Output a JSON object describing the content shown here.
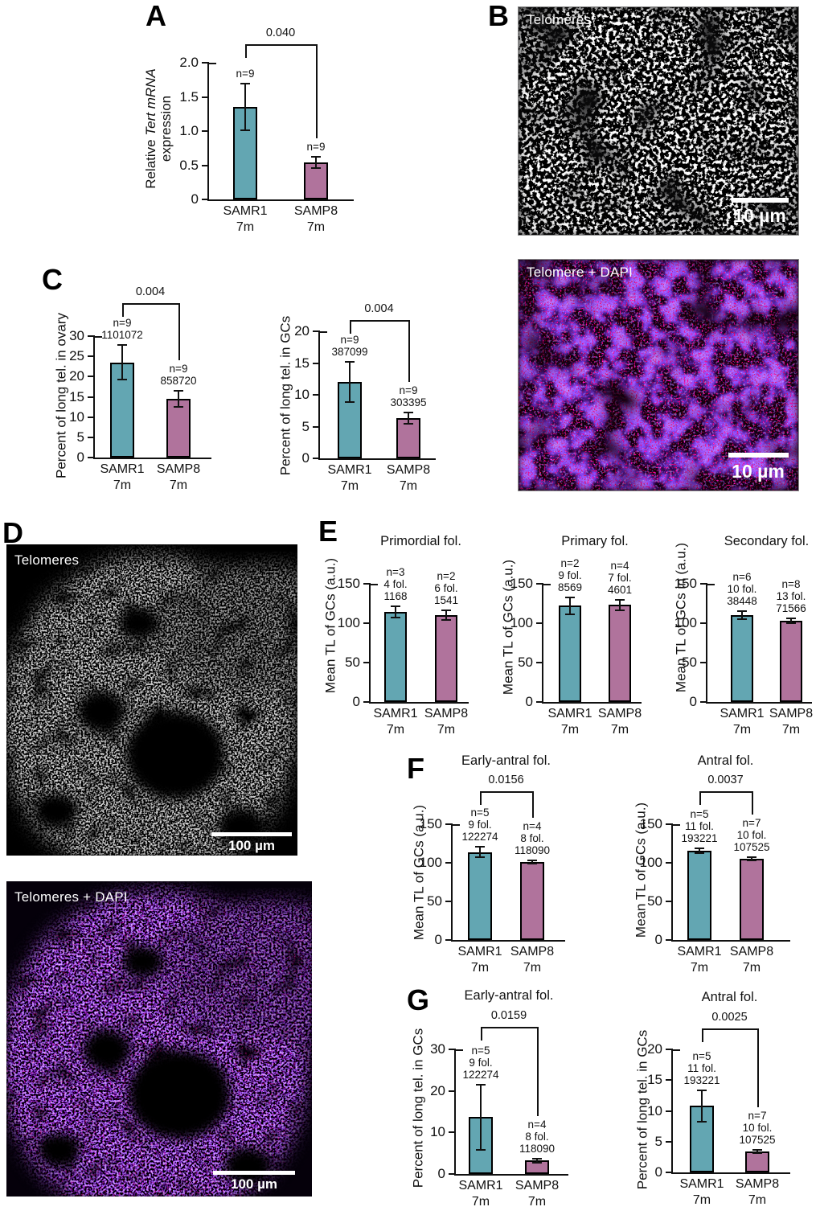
{
  "colors": {
    "teal": "#63a6b2",
    "mauve": "#b0739c",
    "axis": "#111111"
  },
  "panels": {
    "A": {
      "letter": "A"
    },
    "B": {
      "letter": "B",
      "images": [
        {
          "label": "Telomeres",
          "scale_text": "10 µm"
        },
        {
          "label": "Telomere + DAPI",
          "scale_text": "10 µm"
        }
      ]
    },
    "C": {
      "letter": "C"
    },
    "D": {
      "letter": "D",
      "images": [
        {
          "label": "Telomeres",
          "scale_text": "100 µm"
        },
        {
          "label": "Telomeres + DAPI",
          "scale_text": "100 µm"
        }
      ]
    },
    "E": {
      "letter": "E"
    },
    "F": {
      "letter": "F"
    },
    "G": {
      "letter": "G"
    }
  },
  "chart_data": [
    {
      "id": "A",
      "type": "bar",
      "title": "",
      "pvalue": "0.040",
      "ylabel_lines": [
        [
          {
            "t": "Relative "
          },
          {
            "t": "Tert mRNA",
            "i": true
          }
        ],
        [
          {
            "t": "expression"
          }
        ]
      ],
      "ymax": 2,
      "yticks": [
        {
          "v": 0,
          "l": "0"
        },
        {
          "v": 0.5,
          "l": "0.5"
        },
        {
          "v": 1,
          "l": "1.0"
        },
        {
          "v": 1.5,
          "l": "1.5"
        },
        {
          "v": 2,
          "l": "2.0"
        }
      ],
      "bars": [
        {
          "labels": [
            "SAMR1",
            "7m"
          ],
          "ann": [
            "n=9"
          ],
          "value": 1.35,
          "err": 0.34,
          "color": "teal"
        },
        {
          "labels": [
            "SAMP8",
            "7m"
          ],
          "ann": [
            "n=9"
          ],
          "value": 0.54,
          "err": 0.08,
          "color": "mauve"
        }
      ]
    },
    {
      "id": "C1",
      "type": "bar",
      "title": "",
      "pvalue": "0.004",
      "ylabel_lines": [
        [
          {
            "t": "Percent of long tel. in ovary"
          }
        ]
      ],
      "ymax": 30,
      "yticks": [
        {
          "v": 0,
          "l": "0"
        },
        {
          "v": 5,
          "l": "5"
        },
        {
          "v": 10,
          "l": "10"
        },
        {
          "v": 15,
          "l": "15"
        },
        {
          "v": 20,
          "l": "20"
        },
        {
          "v": 25,
          "l": "25"
        },
        {
          "v": 30,
          "l": "30"
        }
      ],
      "bars": [
        {
          "labels": [
            "SAMR1",
            "7m"
          ],
          "ann": [
            "n=9",
            "1101072"
          ],
          "value": 23.5,
          "err": 4.3,
          "color": "teal"
        },
        {
          "labels": [
            "SAMP8",
            "7m"
          ],
          "ann": [
            "n=9",
            "858720"
          ],
          "value": 14.5,
          "err": 1.9,
          "color": "mauve"
        }
      ]
    },
    {
      "id": "C2",
      "type": "bar",
      "title": "",
      "pvalue": "0.004",
      "ylabel_lines": [
        [
          {
            "t": "Percent of long tel. in GCs"
          }
        ]
      ],
      "ymax": 20,
      "yticks": [
        {
          "v": 0,
          "l": "0"
        },
        {
          "v": 5,
          "l": "5"
        },
        {
          "v": 10,
          "l": "10"
        },
        {
          "v": 15,
          "l": "15"
        },
        {
          "v": 20,
          "l": "20"
        }
      ],
      "bars": [
        {
          "labels": [
            "SAMR1",
            "7m"
          ],
          "ann": [
            "n=9",
            "387099"
          ],
          "value": 12,
          "err": 3.2,
          "color": "teal"
        },
        {
          "labels": [
            "SAMP8",
            "7m"
          ],
          "ann": [
            "n=9",
            "303395"
          ],
          "value": 6.3,
          "err": 0.9,
          "color": "mauve"
        }
      ]
    },
    {
      "id": "E1",
      "type": "bar",
      "title": "Primordial fol.",
      "pvalue": "",
      "ylabel_lines": [
        [
          {
            "t": "Mean TL of GCs (a.u.)"
          }
        ]
      ],
      "ymax": 150,
      "yticks": [
        {
          "v": 0,
          "l": "0"
        },
        {
          "v": 50,
          "l": "50"
        },
        {
          "v": 100,
          "l": "100"
        },
        {
          "v": 150,
          "l": "150"
        }
      ],
      "bars": [
        {
          "labels": [
            "SAMR1",
            "7m"
          ],
          "ann": [
            "n=3",
            "4 fol.",
            "1168"
          ],
          "value": 114,
          "err": 7,
          "color": "teal"
        },
        {
          "labels": [
            "SAMP8",
            "7m"
          ],
          "ann": [
            "n=2",
            "6 fol.",
            "1541"
          ],
          "value": 110,
          "err": 6,
          "color": "mauve"
        }
      ]
    },
    {
      "id": "E2",
      "type": "bar",
      "title": "Primary fol.",
      "pvalue": "",
      "ylabel_lines": [
        [
          {
            "t": "Mean TL of GCs (a.u.)"
          }
        ]
      ],
      "ymax": 150,
      "yticks": [
        {
          "v": 0,
          "l": "0"
        },
        {
          "v": 50,
          "l": "50"
        },
        {
          "v": 100,
          "l": "100"
        },
        {
          "v": 150,
          "l": "150"
        }
      ],
      "bars": [
        {
          "labels": [
            "SAMR1",
            "7m"
          ],
          "ann": [
            "n=2",
            "9 fol.",
            "8569"
          ],
          "value": 122,
          "err": 11,
          "color": "teal"
        },
        {
          "labels": [
            "SAMP8",
            "7m"
          ],
          "ann": [
            "n=4",
            "7 fol.",
            "4601"
          ],
          "value": 123,
          "err": 7,
          "color": "mauve"
        }
      ]
    },
    {
      "id": "E3",
      "type": "bar",
      "title": "Secondary fol.",
      "pvalue": "",
      "ylabel_lines": [
        [
          {
            "t": "Mean TL of GCs in (a.u.)"
          }
        ]
      ],
      "ymax": 150,
      "yticks": [
        {
          "v": 0,
          "l": "0"
        },
        {
          "v": 50,
          "l": "50"
        },
        {
          "v": 100,
          "l": "100"
        },
        {
          "v": 150,
          "l": "150"
        }
      ],
      "bars": [
        {
          "labels": [
            "SAMR1",
            "7m"
          ],
          "ann": [
            "n=6",
            "10 fol.",
            "38448"
          ],
          "value": 110,
          "err": 5,
          "color": "teal"
        },
        {
          "labels": [
            "SAMP8",
            "7m"
          ],
          "ann": [
            "n=8",
            "13 fol.",
            "71566"
          ],
          "value": 103,
          "err": 3,
          "color": "mauve"
        }
      ]
    },
    {
      "id": "F1",
      "type": "bar",
      "title": "Early-antral fol.",
      "pvalue": "0.0156",
      "ylabel_lines": [
        [
          {
            "t": "Mean TL of GCs (a.u.)"
          }
        ]
      ],
      "ymax": 150,
      "yticks": [
        {
          "v": 0,
          "l": "0"
        },
        {
          "v": 50,
          "l": "50"
        },
        {
          "v": 100,
          "l": "100"
        },
        {
          "v": 150,
          "l": "150"
        }
      ],
      "bars": [
        {
          "labels": [
            "SAMR1",
            "7m"
          ],
          "ann": [
            "n=5",
            "9 fol.",
            "122274"
          ],
          "value": 114,
          "err": 7,
          "color": "teal"
        },
        {
          "labels": [
            "SAMP8",
            "7m"
          ],
          "ann": [
            "n=4",
            "8 fol.",
            "118090"
          ],
          "value": 101,
          "err": 2,
          "color": "mauve"
        }
      ]
    },
    {
      "id": "F2",
      "type": "bar",
      "title": "Antral fol.",
      "pvalue": "0.0037",
      "ylabel_lines": [
        [
          {
            "t": "Mean TL of GCs (a.u.)"
          }
        ]
      ],
      "ymax": 150,
      "yticks": [
        {
          "v": 0,
          "l": "0"
        },
        {
          "v": 50,
          "l": "50"
        },
        {
          "v": 100,
          "l": "100"
        },
        {
          "v": 150,
          "l": "150"
        }
      ],
      "bars": [
        {
          "labels": [
            "SAMR1",
            "7m"
          ],
          "ann": [
            "n=5",
            "11 fol.",
            "193221"
          ],
          "value": 116,
          "err": 3,
          "color": "teal"
        },
        {
          "labels": [
            "SAMP8",
            "7m"
          ],
          "ann": [
            "n=7",
            "10 fol.",
            "107525"
          ],
          "value": 105,
          "err": 2,
          "color": "mauve"
        }
      ]
    },
    {
      "id": "G1",
      "type": "bar",
      "title": "Early-antral fol.",
      "pvalue": "0.0159",
      "ylabel_lines": [
        [
          {
            "t": "Percent of long tel. in GCs"
          }
        ]
      ],
      "ymax": 30,
      "yticks": [
        {
          "v": 0,
          "l": "0"
        },
        {
          "v": 10,
          "l": "10"
        },
        {
          "v": 20,
          "l": "20"
        },
        {
          "v": 30,
          "l": "30"
        }
      ],
      "bars": [
        {
          "labels": [
            "SAMR1",
            "7m"
          ],
          "ann": [
            "n=5",
            "9 fol.",
            "122274"
          ],
          "value": 13.7,
          "err": 7.8,
          "color": "teal"
        },
        {
          "labels": [
            "SAMP8",
            "7m"
          ],
          "ann": [
            "n=4",
            "8 fol.",
            "118090"
          ],
          "value": 3.2,
          "err": 0.4,
          "color": "mauve"
        }
      ]
    },
    {
      "id": "G2",
      "type": "bar",
      "title": "Antral fol.",
      "pvalue": "0.0025",
      "ylabel_lines": [
        [
          {
            "t": "Percent of long tel. in GCs"
          }
        ]
      ],
      "ymax": 20,
      "yticks": [
        {
          "v": 0,
          "l": "0"
        },
        {
          "v": 5,
          "l": "5"
        },
        {
          "v": 10,
          "l": "10"
        },
        {
          "v": 15,
          "l": "15"
        },
        {
          "v": 20,
          "l": "20"
        }
      ],
      "bars": [
        {
          "labels": [
            "SAMR1",
            "7m"
          ],
          "ann": [
            "n=5",
            "11 fol.",
            "193221"
          ],
          "value": 10.8,
          "err": 2.5,
          "color": "teal"
        },
        {
          "labels": [
            "SAMP8",
            "7m"
          ],
          "ann": [
            "n=7",
            "10 fol.",
            "107525"
          ],
          "value": 3.4,
          "err": 0.3,
          "color": "mauve"
        }
      ]
    }
  ]
}
